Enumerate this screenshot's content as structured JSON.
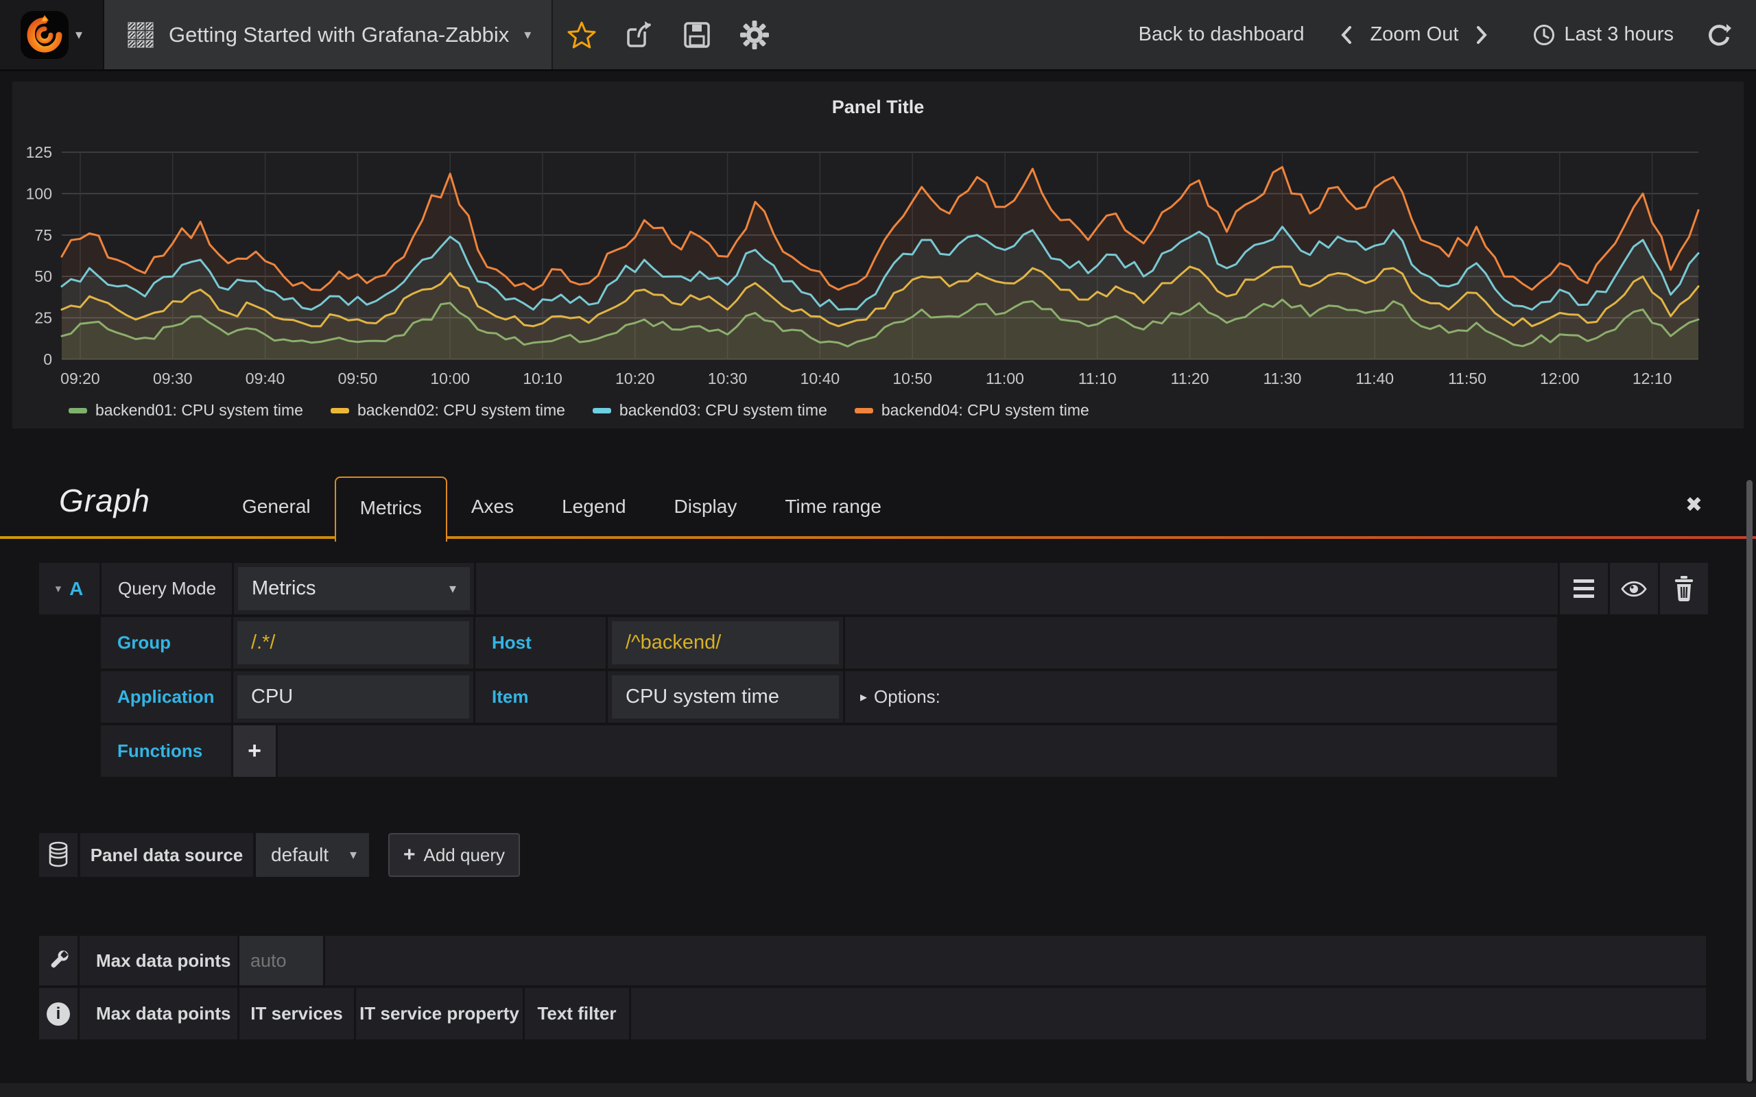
{
  "navbar": {
    "title": "Getting Started with Grafana-Zabbix",
    "back_label": "Back to dashboard",
    "zoom_out_label": "Zoom Out",
    "time_range_label": "Last 3 hours"
  },
  "panel": {
    "title": "Panel Title"
  },
  "chart_data": {
    "type": "line",
    "title": "Panel Title",
    "x_start": "09:18",
    "x_step_minutes": 3,
    "xticks": [
      "09:20",
      "09:30",
      "09:40",
      "09:50",
      "10:00",
      "10:10",
      "10:20",
      "10:30",
      "10:40",
      "10:50",
      "11:00",
      "11:10",
      "11:20",
      "11:30",
      "11:40",
      "11:50",
      "12:00",
      "12:10"
    ],
    "ylim": [
      0,
      125
    ],
    "yticks": [
      0,
      25,
      50,
      75,
      100,
      125
    ],
    "grid": true,
    "legend_position": "bottom",
    "series": [
      {
        "name": "backend01: CPU system time",
        "color": "#7eb26d",
        "values": [
          14,
          22,
          16,
          13,
          20,
          26,
          15,
          18,
          12,
          10,
          13,
          11,
          14,
          24,
          34,
          18,
          12,
          10,
          13,
          11,
          16,
          24,
          18,
          20,
          15,
          28,
          17,
          13,
          10,
          12,
          22,
          30,
          26,
          33,
          28,
          35,
          24,
          20,
          26,
          18,
          28,
          34,
          22,
          30,
          36,
          26,
          32,
          28,
          35,
          20,
          16,
          22,
          12,
          10,
          15,
          11,
          18,
          30,
          14,
          24
        ]
      },
      {
        "name": "backend02: CPU system time",
        "color": "#eab839",
        "values": [
          30,
          38,
          30,
          26,
          35,
          42,
          28,
          32,
          24,
          20,
          26,
          22,
          28,
          42,
          52,
          32,
          24,
          20,
          26,
          22,
          32,
          42,
          34,
          36,
          30,
          46,
          32,
          26,
          20,
          24,
          40,
          50,
          44,
          52,
          46,
          55,
          42,
          36,
          44,
          34,
          46,
          54,
          38,
          48,
          56,
          44,
          52,
          46,
          55,
          36,
          30,
          40,
          24,
          20,
          28,
          22,
          34,
          50,
          26,
          44
        ]
      },
      {
        "name": "backend03: CPU system time",
        "color": "#6ed0e0",
        "values": [
          44,
          55,
          44,
          38,
          50,
          60,
          42,
          47,
          36,
          30,
          38,
          33,
          42,
          60,
          74,
          47,
          36,
          30,
          39,
          33,
          48,
          60,
          50,
          53,
          45,
          66,
          47,
          39,
          30,
          36,
          58,
          72,
          63,
          75,
          66,
          78,
          60,
          52,
          63,
          50,
          66,
          77,
          55,
          69,
          80,
          63,
          74,
          66,
          78,
          52,
          44,
          58,
          36,
          30,
          42,
          33,
          50,
          72,
          39,
          64
        ]
      },
      {
        "name": "backend04: CPU system time",
        "color": "#ef843c",
        "values": [
          62,
          76,
          60,
          52,
          70,
          83,
          58,
          65,
          50,
          42,
          53,
          46,
          58,
          84,
          112,
          66,
          50,
          42,
          54,
          46,
          66,
          84,
          70,
          74,
          62,
          95,
          65,
          54,
          42,
          50,
          80,
          104,
          88,
          110,
          92,
          115,
          84,
          72,
          88,
          70,
          92,
          108,
          77,
          96,
          116,
          88,
          104,
          92,
          110,
          72,
          62,
          80,
          50,
          42,
          58,
          46,
          70,
          100,
          54,
          90
        ]
      }
    ]
  },
  "editor": {
    "panel_type": "Graph",
    "tabs": [
      {
        "label": "General",
        "active": false
      },
      {
        "label": "Metrics",
        "active": true
      },
      {
        "label": "Axes",
        "active": false
      },
      {
        "label": "Legend",
        "active": false
      },
      {
        "label": "Display",
        "active": false
      },
      {
        "label": "Time range",
        "active": false
      }
    ],
    "query": {
      "ref": "A",
      "query_mode_label": "Query Mode",
      "query_mode_value": "Metrics",
      "group_label": "Group",
      "group_value": "/.*/",
      "host_label": "Host",
      "host_value": "/^backend/",
      "application_label": "Application",
      "application_value": "CPU",
      "item_label": "Item",
      "item_value": "CPU system time",
      "options_label": "Options:",
      "functions_label": "Functions",
      "add_function_label": "+"
    },
    "datasource": {
      "label": "Panel data source",
      "value": "default",
      "add_query_label": "Add query"
    },
    "footer": {
      "max_data_points_label": "Max data points",
      "max_data_points_placeholder": "auto",
      "info_tabs": [
        "Max data points",
        "IT services",
        "IT service property",
        "Text filter"
      ]
    }
  },
  "colors": {
    "accent_tab_border": "#dd8a1f",
    "label_blue": "#33b5e5",
    "regex_yellow": "#d9b123",
    "star_orange": "#f2a20d"
  }
}
